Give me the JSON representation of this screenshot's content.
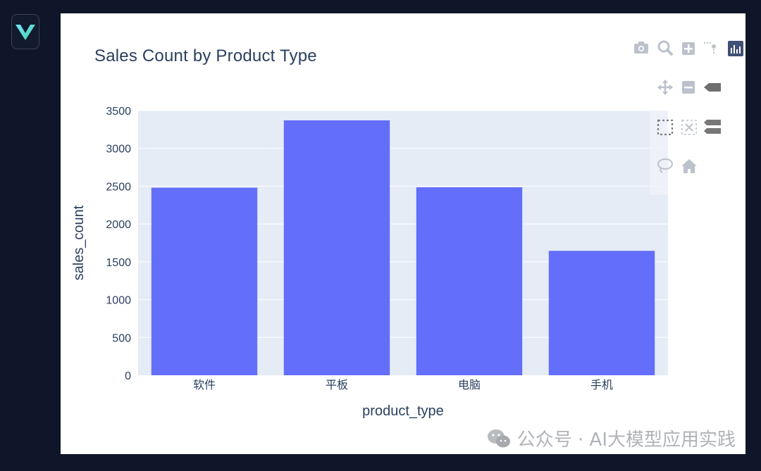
{
  "app": {
    "logo_icon": "v-logo-icon"
  },
  "chart_data": {
    "type": "bar",
    "title": "Sales Count by Product Type",
    "xlabel": "product_type",
    "ylabel": "sales_count",
    "categories": [
      "软件",
      "平板",
      "电脑",
      "手机"
    ],
    "values": [
      2480,
      3370,
      2485,
      1645
    ],
    "ylim": [
      0,
      3500
    ],
    "yticks": [
      0,
      500,
      1000,
      1500,
      2000,
      2500,
      3000,
      3500
    ],
    "ytick_labels": [
      "0",
      "500",
      "1000",
      "1500",
      "2000",
      "2500",
      "3000",
      "3500"
    ],
    "bar_color": "#636efa",
    "plot_bg": "#e5ecf6",
    "grid": true
  },
  "modebar": {
    "buttons": [
      "camera-icon",
      "zoom-icon",
      "zoom-in-icon",
      "spike-lines-icon",
      "plotly-logo-icon",
      "pan-icon",
      "zoom-out-icon",
      "compare-hover-icon",
      "box-select-icon",
      "autoscale-icon",
      "closest-hover-icon",
      "lasso-select-icon",
      "reset-axes-icon"
    ]
  },
  "watermark": {
    "text": "公众号 · AI大模型应用实践",
    "icon": "wechat-icon"
  }
}
